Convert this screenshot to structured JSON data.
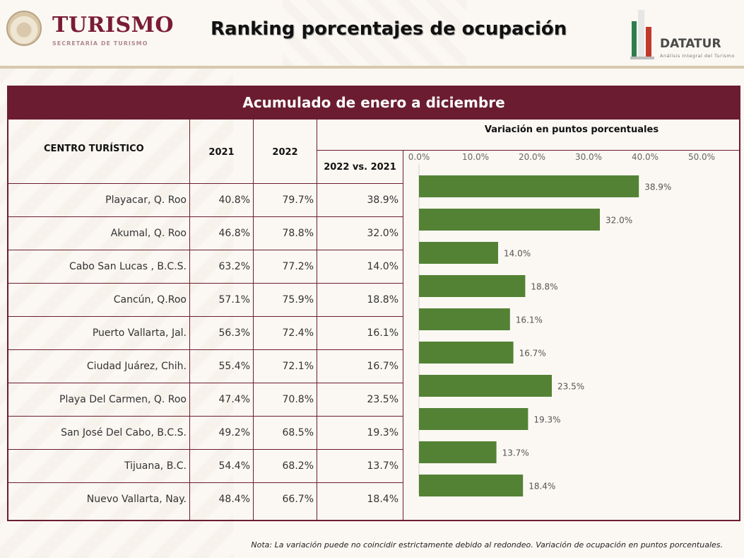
{
  "header": {
    "brand_title": "TURISMO",
    "brand_subtitle": "SECRETARÍA DE TURISMO",
    "page_title": "Ranking porcentajes de ocupación",
    "datatur_name": "DATATUR",
    "datatur_sub": "Análisis Integral del Turismo"
  },
  "table": {
    "banner": "Acumulado de enero a diciembre",
    "col_headers": {
      "name": "CENTRO TURÍSTICO",
      "y2021": "2021",
      "y2022": "2022",
      "variation_group": "Variación en puntos porcentuales",
      "variation": "2022 vs. 2021"
    },
    "rows": [
      {
        "name": "Playacar, Q. Roo",
        "y2021": "40.8%",
        "y2022": "79.7%",
        "variation": "38.9%"
      },
      {
        "name": "Akumal, Q. Roo",
        "y2021": "46.8%",
        "y2022": "78.8%",
        "variation": "32.0%"
      },
      {
        "name": "Cabo San Lucas , B.C.S.",
        "y2021": "63.2%",
        "y2022": "77.2%",
        "variation": "14.0%"
      },
      {
        "name": "Cancún, Q.Roo",
        "y2021": "57.1%",
        "y2022": "75.9%",
        "variation": "18.8%"
      },
      {
        "name": "Puerto Vallarta, Jal.",
        "y2021": "56.3%",
        "y2022": "72.4%",
        "variation": "16.1%"
      },
      {
        "name": "Ciudad Juárez, Chih.",
        "y2021": "55.4%",
        "y2022": "72.1%",
        "variation": "16.7%"
      },
      {
        "name": "Playa Del Carmen, Q. Roo",
        "y2021": "47.4%",
        "y2022": "70.8%",
        "variation": "23.5%"
      },
      {
        "name": "San José Del Cabo, B.C.S.",
        "y2021": "49.2%",
        "y2022": "68.5%",
        "variation": "19.3%"
      },
      {
        "name": "Tijuana, B.C.",
        "y2021": "54.4%",
        "y2022": "68.2%",
        "variation": "13.7%"
      },
      {
        "name": "Nuevo Vallarta, Nay.",
        "y2021": "48.4%",
        "y2022": "66.7%",
        "variation": "18.4%"
      }
    ]
  },
  "chart_data": {
    "type": "bar",
    "orientation": "horizontal",
    "title": "Variación en puntos porcentuales",
    "categories": [
      "Playacar, Q. Roo",
      "Akumal, Q. Roo",
      "Cabo San Lucas , B.C.S.",
      "Cancún, Q.Roo",
      "Puerto Vallarta, Jal.",
      "Ciudad Juárez, Chih.",
      "Playa Del Carmen, Q. Roo",
      "San José Del Cabo, B.C.S.",
      "Tijuana, B.C.",
      "Nuevo Vallarta, Nay."
    ],
    "values": [
      38.9,
      32.0,
      14.0,
      18.8,
      16.1,
      16.7,
      23.5,
      19.3,
      13.7,
      18.4
    ],
    "value_labels": [
      "38.9%",
      "32.0%",
      "14.0%",
      "18.8%",
      "16.1%",
      "16.7%",
      "23.5%",
      "19.3%",
      "13.7%",
      "18.4%"
    ],
    "xlim": [
      0,
      50
    ],
    "x_ticks": [
      "0.0%",
      "10.0%",
      "20.0%",
      "30.0%",
      "40.0%",
      "50.0%"
    ],
    "bar_color": "#548235",
    "grid": false,
    "axis_position": "top"
  },
  "footer": {
    "note": "Nota: La variación puede no coincidir estrictamente debido al redondeo. Variación de ocupación en puntos porcentuales."
  },
  "colors": {
    "brand": "#7a1c36",
    "banner": "#6b1c30",
    "bar": "#548235"
  }
}
